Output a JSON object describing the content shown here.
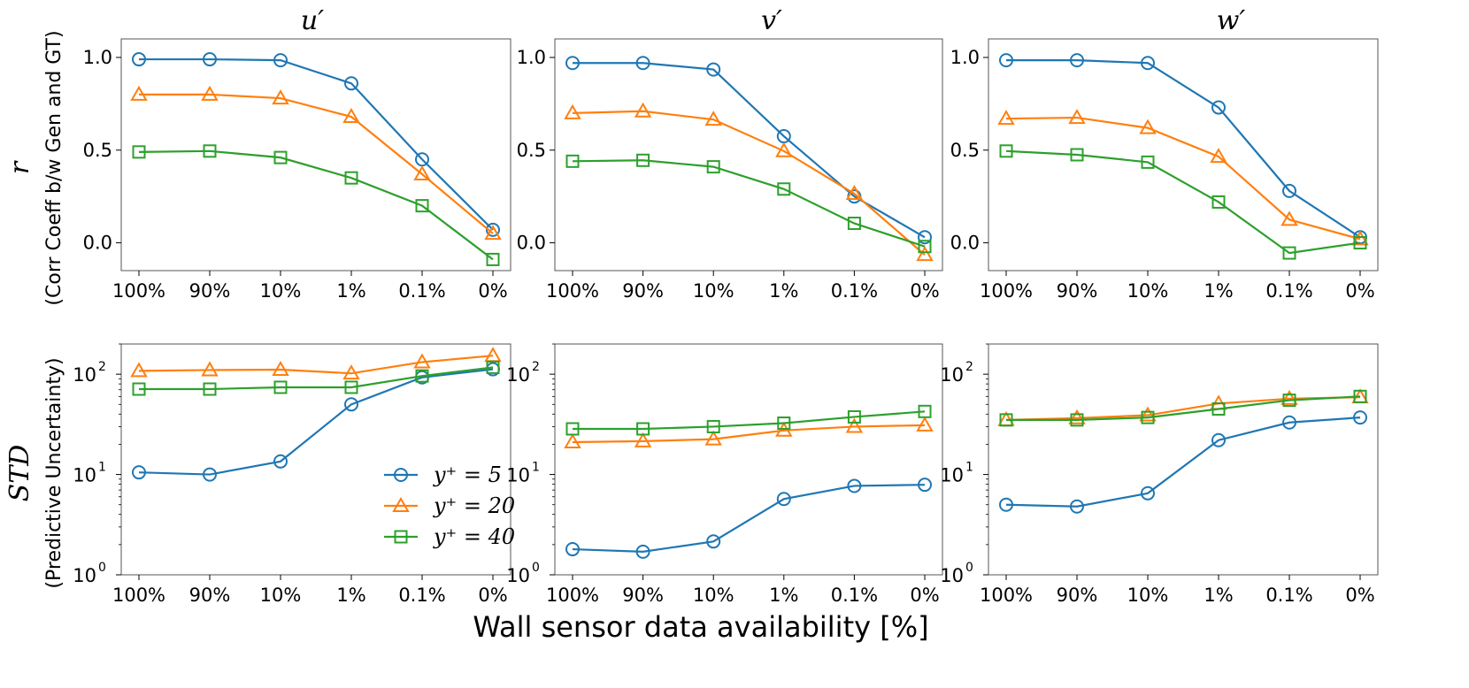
{
  "figure": {
    "xlabel": "Wall sensor data availability [%]",
    "column_titles": [
      "u′",
      "v′",
      "w′"
    ],
    "row_labels": [
      {
        "symbol": "r",
        "subtitle": "(Corr Coeff b/w Gen and GT)"
      },
      {
        "symbol": "STD",
        "subtitle": "(Predictive Uncertainty)"
      }
    ],
    "legend": [
      {
        "label": "y⁺ = 5",
        "color": "#1f77b4",
        "marker": "circle"
      },
      {
        "label": "y⁺ = 20",
        "color": "#ff7f0e",
        "marker": "triangle"
      },
      {
        "label": "y⁺ = 40",
        "color": "#2ca02c",
        "marker": "square"
      }
    ]
  },
  "chart_data": [
    {
      "type": "line",
      "panel": "r-u",
      "title": "u′",
      "yscale": "linear",
      "categories": [
        "100%",
        "90%",
        "10%",
        "1%",
        "0.1%",
        "0%"
      ],
      "ylim": [
        -0.15,
        1.1
      ],
      "yticks": [
        0.0,
        0.5,
        1.0
      ],
      "ytick_labels": [
        "0.0",
        "0.5",
        "1.0"
      ],
      "series": [
        {
          "name": "y+ = 5",
          "values": [
            0.99,
            0.99,
            0.985,
            0.86,
            0.45,
            0.07
          ]
        },
        {
          "name": "y+ = 20",
          "values": [
            0.8,
            0.8,
            0.78,
            0.68,
            0.37,
            0.05
          ]
        },
        {
          "name": "y+ = 40",
          "values": [
            0.49,
            0.495,
            0.46,
            0.35,
            0.2,
            -0.09
          ]
        }
      ]
    },
    {
      "type": "line",
      "panel": "r-v",
      "title": "v′",
      "yscale": "linear",
      "categories": [
        "100%",
        "90%",
        "10%",
        "1%",
        "0.1%",
        "0%"
      ],
      "ylim": [
        -0.15,
        1.1
      ],
      "yticks": [
        0.0,
        0.5,
        1.0
      ],
      "ytick_labels": [
        "0.0",
        "0.5",
        "1.0"
      ],
      "series": [
        {
          "name": "y+ = 5",
          "values": [
            0.97,
            0.97,
            0.935,
            0.575,
            0.25,
            0.03
          ]
        },
        {
          "name": "y+ = 20",
          "values": [
            0.7,
            0.71,
            0.665,
            0.495,
            0.265,
            -0.065
          ]
        },
        {
          "name": "y+ = 40",
          "values": [
            0.44,
            0.445,
            0.41,
            0.29,
            0.105,
            -0.02
          ]
        }
      ]
    },
    {
      "type": "line",
      "panel": "r-w",
      "title": "w′",
      "yscale": "linear",
      "categories": [
        "100%",
        "90%",
        "10%",
        "1%",
        "0.1%",
        "0%"
      ],
      "ylim": [
        -0.15,
        1.1
      ],
      "yticks": [
        0.0,
        0.5,
        1.0
      ],
      "ytick_labels": [
        "0.0",
        "0.5",
        "1.0"
      ],
      "series": [
        {
          "name": "y+ = 5",
          "values": [
            0.985,
            0.985,
            0.97,
            0.73,
            0.28,
            0.03
          ]
        },
        {
          "name": "y+ = 20",
          "values": [
            0.67,
            0.675,
            0.62,
            0.465,
            0.125,
            0.02
          ]
        },
        {
          "name": "y+ = 40",
          "values": [
            0.495,
            0.475,
            0.435,
            0.22,
            -0.055,
            0.0
          ]
        }
      ]
    },
    {
      "type": "line",
      "panel": "std-u",
      "title": "u′",
      "yscale": "log",
      "categories": [
        "100%",
        "90%",
        "10%",
        "1%",
        "0.1%",
        "0%"
      ],
      "ylim": [
        1,
        200
      ],
      "yticks": [
        1,
        10,
        100
      ],
      "ytick_labels": [
        "10",
        "10",
        "10"
      ],
      "ytick_exponents": [
        "0",
        "1",
        "2"
      ],
      "series": [
        {
          "name": "y+ = 5",
          "values": [
            10.5,
            10.0,
            13.5,
            50,
            93,
            112
          ]
        },
        {
          "name": "y+ = 20",
          "values": [
            108,
            110,
            111,
            102,
            132,
            153
          ]
        },
        {
          "name": "y+ = 40",
          "values": [
            71,
            71,
            74,
            74,
            96,
            117
          ]
        }
      ]
    },
    {
      "type": "line",
      "panel": "std-v",
      "title": "v′",
      "yscale": "log",
      "categories": [
        "100%",
        "90%",
        "10%",
        "1%",
        "0.1%",
        "0%"
      ],
      "ylim": [
        1,
        200
      ],
      "yticks": [
        1,
        10,
        100
      ],
      "ytick_labels": [
        "10",
        "10",
        "10"
      ],
      "ytick_exponents": [
        "0",
        "1",
        "2"
      ],
      "series": [
        {
          "name": "y+ = 5",
          "values": [
            1.8,
            1.7,
            2.15,
            5.7,
            7.7,
            7.9
          ]
        },
        {
          "name": "y+ = 20",
          "values": [
            21,
            21.5,
            22.5,
            27.5,
            30,
            31
          ]
        },
        {
          "name": "y+ = 40",
          "values": [
            28.5,
            28.5,
            30,
            32.5,
            37.5,
            42.5
          ]
        }
      ]
    },
    {
      "type": "line",
      "panel": "std-w",
      "title": "w′",
      "yscale": "log",
      "categories": [
        "100%",
        "90%",
        "10%",
        "1%",
        "0.1%",
        "0%"
      ],
      "ylim": [
        1,
        200
      ],
      "yticks": [
        1,
        10,
        100
      ],
      "ytick_labels": [
        "10",
        "10",
        "10"
      ],
      "ytick_exponents": [
        "0",
        "1",
        "2"
      ],
      "series": [
        {
          "name": "y+ = 5",
          "values": [
            5.0,
            4.8,
            6.5,
            22,
            33,
            37
          ]
        },
        {
          "name": "y+ = 20",
          "values": [
            35,
            36.5,
            39,
            51,
            57,
            59
          ]
        },
        {
          "name": "y+ = 40",
          "values": [
            35,
            35,
            37,
            45,
            55,
            60
          ]
        }
      ]
    }
  ]
}
